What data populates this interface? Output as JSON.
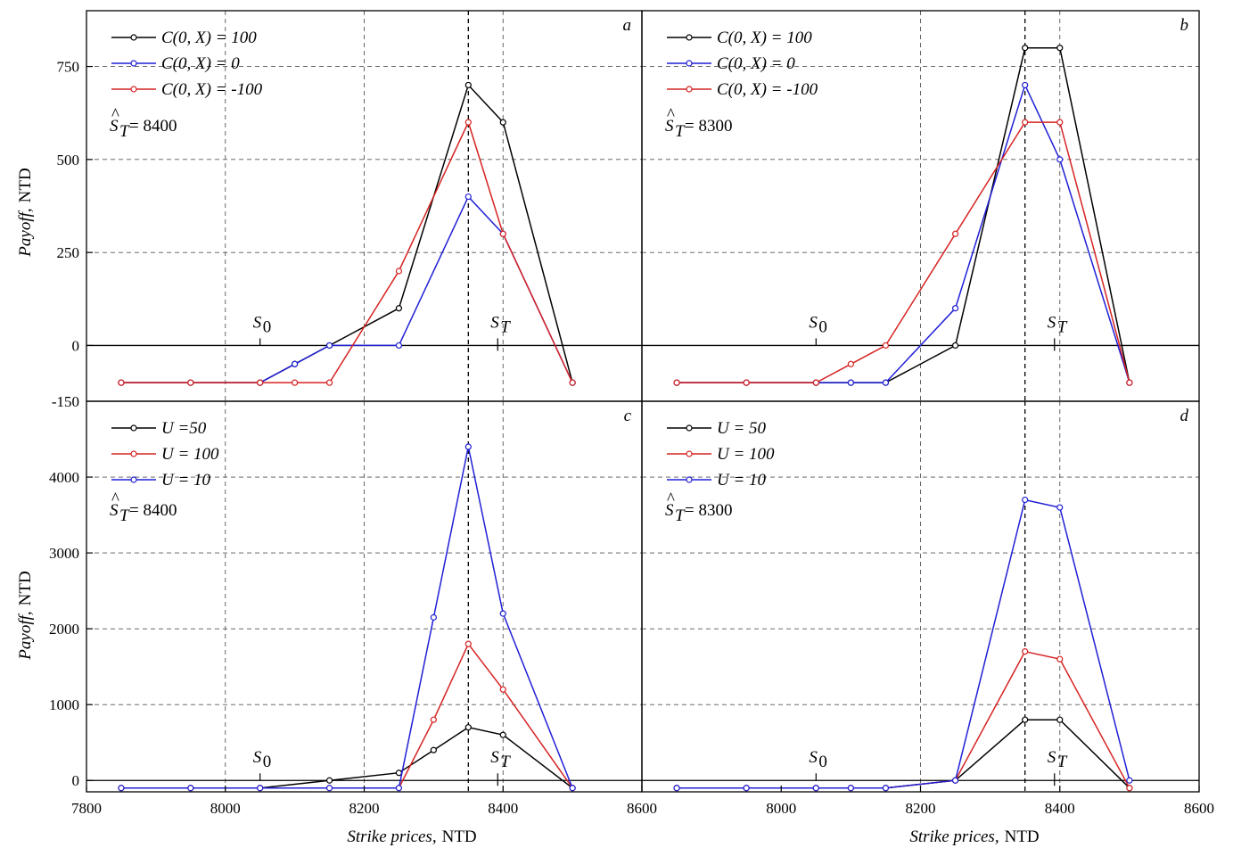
{
  "colors": {
    "black": "#000000",
    "blue": "#1f1fd6",
    "red": "#d62222"
  },
  "chart_data": [
    {
      "panel": "a",
      "type": "line",
      "x": [
        7850,
        7950,
        8050,
        8100,
        8150,
        8250,
        8350,
        8400,
        8500
      ],
      "series": [
        {
          "name": "C(0, X) = 100",
          "color": "#000000",
          "values": [
            -100,
            -100,
            -100,
            -50,
            0,
            100,
            700,
            600,
            -100
          ]
        },
        {
          "name": "C(0, X) = 0",
          "color": "#1f1fd6",
          "values": [
            -100,
            -100,
            -100,
            -50,
            0,
            0,
            400,
            300,
            -100
          ]
        },
        {
          "name": "C(0, X) = -100",
          "color": "#d62222",
          "values": [
            -100,
            -100,
            -100,
            -100,
            -100,
            200,
            600,
            300,
            -100
          ]
        }
      ],
      "xlim": [
        7800,
        8600
      ],
      "ylim": [
        -150,
        900
      ],
      "yticks": [
        -150,
        0,
        250,
        500,
        750
      ],
      "ylabel": "Payoff, NTD",
      "vlines": [
        8350,
        8400
      ],
      "vline_dashed_gray": [
        8000,
        8200
      ],
      "annotation_ST_hat": "= 8400",
      "S0_x": 8050,
      "ST_x": 8400
    },
    {
      "panel": "b",
      "type": "line",
      "x": [
        7850,
        7950,
        8050,
        8100,
        8150,
        8250,
        8350,
        8400,
        8500
      ],
      "series": [
        {
          "name": "C(0, X) = 100",
          "color": "#000000",
          "values": [
            -100,
            -100,
            -100,
            -100,
            -100,
            0,
            800,
            800,
            -100
          ]
        },
        {
          "name": "C(0, X) = 0",
          "color": "#1f1fd6",
          "values": [
            -100,
            -100,
            -100,
            -100,
            -100,
            100,
            700,
            500,
            -100
          ]
        },
        {
          "name": "C(0, X) = -100",
          "color": "#d62222",
          "values": [
            -100,
            -100,
            -100,
            -50,
            0,
            300,
            600,
            600,
            -100
          ]
        }
      ],
      "xlim": [
        7800,
        8600
      ],
      "ylim": [
        -150,
        900
      ],
      "vlines": [
        8350,
        8400
      ],
      "vline_dashed_gray": [
        8200
      ],
      "annotation_ST_hat": "= 8300",
      "S0_x": 8050,
      "ST_x": 8400
    },
    {
      "panel": "c",
      "type": "line",
      "x": [
        7850,
        7950,
        8050,
        8150,
        8250,
        8300,
        8350,
        8400,
        8500
      ],
      "series": [
        {
          "name": "U =50",
          "color": "#000000",
          "values": [
            -100,
            -100,
            -100,
            0,
            100,
            400,
            700,
            600,
            -100
          ]
        },
        {
          "name": "U = 100",
          "color": "#d62222",
          "values": [
            -100,
            -100,
            -100,
            -100,
            -100,
            800,
            1800,
            1200,
            -100
          ]
        },
        {
          "name": "U = 10",
          "color": "#1f1fd6",
          "values": [
            -100,
            -100,
            -100,
            -100,
            -100,
            2150,
            4400,
            2200,
            -100
          ]
        }
      ],
      "xlim": [
        7800,
        8600
      ],
      "ylim": [
        -150,
        5000
      ],
      "xticks": [
        7800,
        8000,
        8200,
        8400,
        8600
      ],
      "yticks": [
        0,
        1000,
        2000,
        3000,
        4000
      ],
      "ylabel": "Payoff, NTD",
      "xlabel": "Strike prices, NTD",
      "vlines": [
        8350,
        8400
      ],
      "vline_dashed_gray": [
        8000,
        8200
      ],
      "annotation_ST_hat": "= 8400",
      "S0_x": 8050,
      "ST_x": 8400
    },
    {
      "panel": "d",
      "type": "line",
      "x": [
        7850,
        7950,
        8050,
        8100,
        8150,
        8250,
        8350,
        8400,
        8500
      ],
      "series": [
        {
          "name": "U = 50",
          "color": "#000000",
          "values": [
            -100,
            -100,
            -100,
            -100,
            -100,
            0,
            800,
            800,
            -100
          ]
        },
        {
          "name": "U = 100",
          "color": "#d62222",
          "values": [
            -100,
            -100,
            -100,
            -100,
            -100,
            0,
            1700,
            1600,
            -100
          ]
        },
        {
          "name": "U = 10",
          "color": "#1f1fd6",
          "values": [
            -100,
            -100,
            -100,
            -100,
            -100,
            0,
            3700,
            3600,
            0
          ]
        }
      ],
      "xlim": [
        7800,
        8600
      ],
      "ylim": [
        -150,
        5000
      ],
      "xticks": [
        8000,
        8200,
        8400,
        8600
      ],
      "xlabel": "Strike prices, NTD",
      "vlines": [
        8350,
        8400
      ],
      "vline_dashed_gray": [
        8200
      ],
      "annotation_ST_hat": "= 8300",
      "S0_x": 8050,
      "ST_x": 8400
    }
  ],
  "labels": {
    "x_axis_title_prefix": "Strike prices,",
    "x_axis_title_unit": "NTD",
    "y_axis_title_prefix": "Payoff,",
    "y_axis_title_unit": "NTD",
    "x_tick_7800": "7800",
    "x_tick_8600": "8600",
    "y_bottom_tick_top_panels": "-150"
  }
}
